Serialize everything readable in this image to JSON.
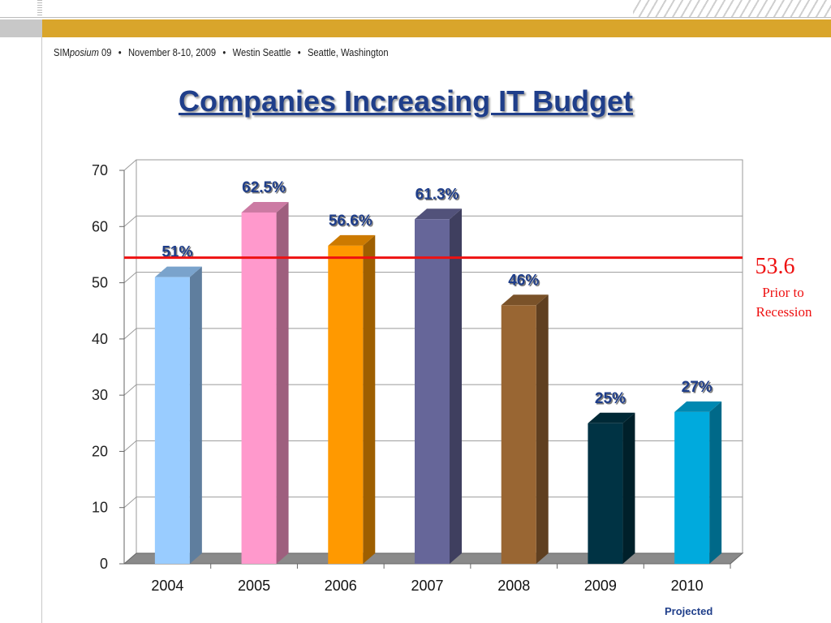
{
  "header": {
    "event_prefix": "SIM",
    "event_italic": "posium",
    "event_year": "09",
    "event_dates": "November 8-10, 2009",
    "event_venue": "Westin Seattle",
    "event_city": "Seattle, Washington",
    "bullet": "•"
  },
  "title": "Companies Increasing IT Budget",
  "chart_data": {
    "type": "bar",
    "title": "Companies Increasing IT Budget",
    "categories": [
      "2004",
      "2005",
      "2006",
      "2007",
      "2008",
      "2009",
      "2010"
    ],
    "values": [
      51,
      62.5,
      56.6,
      61.3,
      46,
      25,
      27
    ],
    "data_labels": [
      "51%",
      "62.5%",
      "56.6%",
      "61.3%",
      "46%",
      "25%",
      "27%"
    ],
    "bar_colors": [
      "#99ccff",
      "#ff99cc",
      "#ff9900",
      "#666699",
      "#996633",
      "#003344",
      "#00aadd"
    ],
    "ylim": [
      0,
      70
    ],
    "yticks": [
      0,
      10,
      20,
      30,
      40,
      50,
      60,
      70
    ],
    "grid": true,
    "reference_line": {
      "value": 53.6,
      "label": "53.6",
      "note_line1": "Prior to",
      "note_line2": "Recession",
      "color": "#ee1111"
    },
    "category_note": {
      "category": "2010",
      "text": "Projected"
    },
    "xlabel": "",
    "ylabel": ""
  }
}
